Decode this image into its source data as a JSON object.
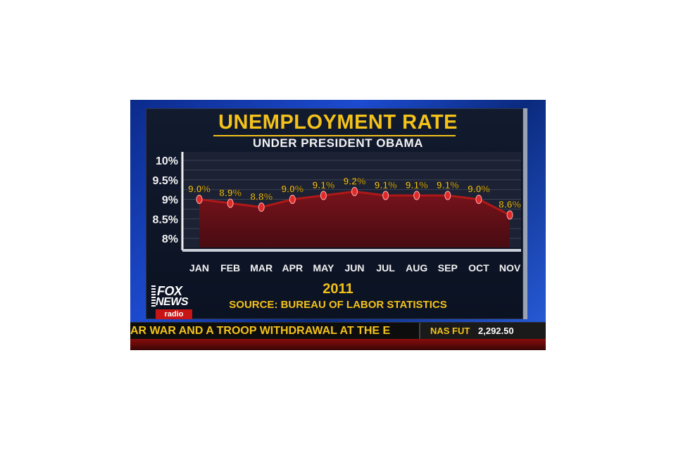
{
  "chart_data": {
    "type": "area",
    "title": "UNEMPLOYMENT RATE",
    "subtitle": "UNDER PRESIDENT OBAMA",
    "categories": [
      "JAN",
      "FEB",
      "MAR",
      "APR",
      "MAY",
      "JUN",
      "JUL",
      "AUG",
      "SEP",
      "OCT",
      "NOV"
    ],
    "values": [
      9.0,
      8.9,
      8.8,
      9.0,
      9.1,
      9.2,
      9.1,
      9.1,
      9.1,
      9.0,
      8.6
    ],
    "value_labels": [
      "9.0%",
      "8.9%",
      "8.8%",
      "9.0%",
      "9.1%",
      "9.2%",
      "9.1%",
      "9.1%",
      "9.1%",
      "9.0%",
      "8.6%"
    ],
    "y_ticks": [
      10,
      9.5,
      9,
      8.5,
      8
    ],
    "y_tick_labels": [
      "10%",
      "9.5%",
      "9%",
      "8.5%",
      "8%"
    ],
    "ylim": [
      7.75,
      10
    ],
    "xlabel": "2011",
    "source": "SOURCE: BUREAU OF LABOR STATISTICS",
    "grid": true,
    "colors": {
      "line": "#b01818",
      "fill": "#6b0f14",
      "marker": "#e02a2a",
      "label": "#f3c21a",
      "axis": "#f2f2f2"
    }
  },
  "network": {
    "brand_top": "FOX",
    "brand_bottom": "NEWS",
    "brand_tag": "radio"
  },
  "ticker": {
    "crawl": "AR WAR AND A TROOP WITHDRAWAL AT THE E",
    "market_label": "NAS FUT",
    "market_value": "2,292.50"
  }
}
